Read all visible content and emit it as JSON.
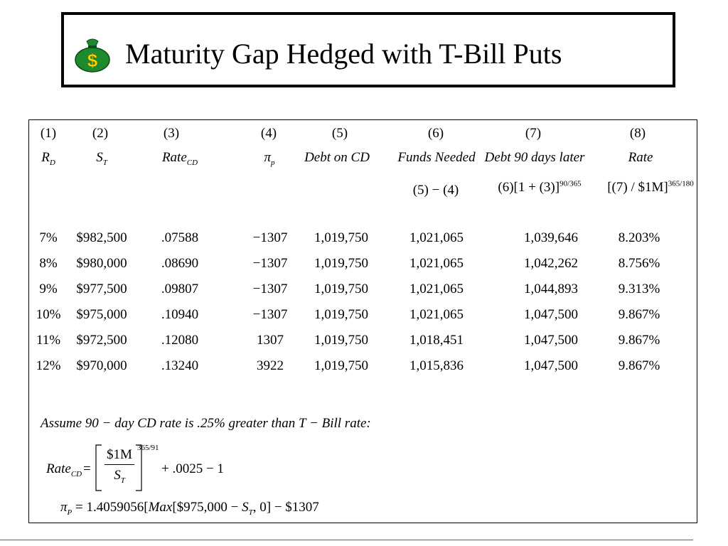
{
  "title": "Maturity Gap Hedged with T-Bill Puts",
  "icon": {
    "name": "money-bag-icon",
    "color": "#1e8a2e",
    "symbol": "$"
  },
  "table": {
    "col_numbers": [
      "(1)",
      "(2)",
      "(3)",
      "(4)",
      "(5)",
      "(6)",
      "(7)",
      "(8)"
    ],
    "headers": {
      "c1": "R",
      "c1_sub": "D",
      "c2": "S",
      "c2_sub": "T",
      "c3": "Rate",
      "c3_sub": "CD",
      "c4": "π",
      "c4_sub": "p",
      "c5": "Debt on CD",
      "c6": "Funds Needed",
      "c7": "Debt 90 days later",
      "c8": "Rate"
    },
    "formulas": {
      "c6": "(5) − (4)",
      "c7": "(6)[1 + (3)]",
      "c7_sup": "90/365",
      "c8": "[(7) / $1M]",
      "c8_sup": "365/180"
    },
    "rows": [
      [
        "7%",
        "$982,500",
        ".07588",
        "−1307",
        "1,019,750",
        "1,021,065",
        "1,039,646",
        "8.203%"
      ],
      [
        "8%",
        "$980,000",
        ".08690",
        "−1307",
        "1,019,750",
        "1,021,065",
        "1,042,262",
        "8.756%"
      ],
      [
        "9%",
        "$977,500",
        ".09807",
        "−1307",
        "1,019,750",
        "1,021,065",
        "1,044,893",
        "9.313%"
      ],
      [
        "10%",
        "$975,000",
        ".10940",
        "−1307",
        "1,019,750",
        "1,021,065",
        "1,047,500",
        "9.867%"
      ],
      [
        "11%",
        "$972,500",
        ".12080",
        "1307",
        "1,019,750",
        "1,018,451",
        "1,047,500",
        "9.867%"
      ],
      [
        "12%",
        "$970,000",
        ".13240",
        "3922",
        "1,019,750",
        "1,015,836",
        "1,047,500",
        "9.867%"
      ]
    ]
  },
  "notes": {
    "assume": "Assume  90 − day  CD  rate  is  .25%  greater  than  T − Bill  rate:",
    "rate_lhs": "Rate",
    "rate_lhs_sub": "CD",
    "rate_eq": "=",
    "rate_num": "$1M",
    "rate_den": "S",
    "rate_den_sub": "T",
    "rate_sup": "365/91",
    "rate_tail": "+  .0025 −  1",
    "pi_lhs": "π",
    "pi_lhs_sub": "P",
    "pi_rhs_a": "= 1.4059056[",
    "pi_max": "Max",
    "pi_rhs_b": "[$975,000 − ",
    "pi_s": "S",
    "pi_s_sub": "T",
    "pi_rhs_c": ", 0]  − $1307"
  }
}
